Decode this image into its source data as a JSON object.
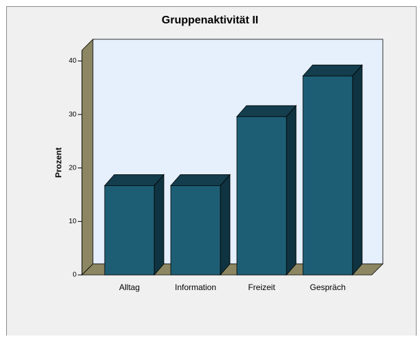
{
  "chart_data": {
    "type": "bar3d",
    "title": "Gruppenaktivität II",
    "ylabel": "Prozent",
    "categories": [
      "Alltag",
      "Information",
      "Freizeit",
      "Gespräch"
    ],
    "values": [
      16.7,
      16.7,
      29.6,
      37.2
    ],
    "color": "#1e5e75",
    "ylim": [
      0,
      42
    ],
    "yticks": [
      0,
      10,
      20,
      30,
      40
    ]
  }
}
